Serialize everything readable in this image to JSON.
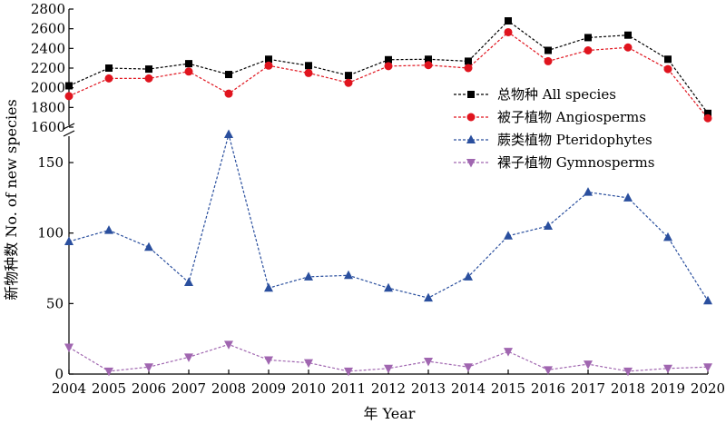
{
  "chart_data": {
    "type": "line",
    "xlabel": "年 Year",
    "ylabel": "新物种数 No. of new species",
    "x": [
      2004,
      2005,
      2006,
      2007,
      2008,
      2009,
      2010,
      2011,
      2012,
      2013,
      2014,
      2015,
      2016,
      2017,
      2018,
      2019,
      2020
    ],
    "axis_break": true,
    "upper_ylim": [
      1600,
      2800
    ],
    "upper_yticks": [
      1600,
      1800,
      2000,
      2200,
      2400,
      2600,
      2800
    ],
    "lower_ylim": [
      0,
      170
    ],
    "lower_yticks": [
      0,
      50,
      100,
      150
    ],
    "legend_position": "right",
    "series": [
      {
        "name": "总物种 All species",
        "panel": "upper",
        "color": "#000000",
        "marker": "square",
        "values": [
          2020,
          2200,
          2190,
          2245,
          2135,
          2290,
          2225,
          2125,
          2285,
          2290,
          2270,
          2680,
          2380,
          2510,
          2535,
          2290,
          1740
        ]
      },
      {
        "name": "被子植物 Angiosperms",
        "panel": "upper",
        "color": "#e0141e",
        "marker": "circle",
        "values": [
          1915,
          2095,
          2095,
          2165,
          1940,
          2225,
          2150,
          2050,
          2220,
          2230,
          2200,
          2565,
          2270,
          2380,
          2410,
          2190,
          1690
        ]
      },
      {
        "name": "蕨类植物 Pteridophytes",
        "panel": "lower",
        "color": "#2a4f9e",
        "marker": "triangle-up",
        "values": [
          94,
          102,
          90,
          65,
          170,
          61,
          69,
          70,
          61,
          54,
          69,
          98,
          105,
          129,
          125,
          97,
          52
        ]
      },
      {
        "name": "裸子植物 Gymnosperms",
        "panel": "lower",
        "color": "#a066b0",
        "marker": "triangle-down",
        "values": [
          19,
          2,
          5,
          12,
          21,
          10,
          8,
          2,
          4,
          9,
          5,
          16,
          3,
          7,
          2,
          4,
          5
        ]
      }
    ]
  }
}
